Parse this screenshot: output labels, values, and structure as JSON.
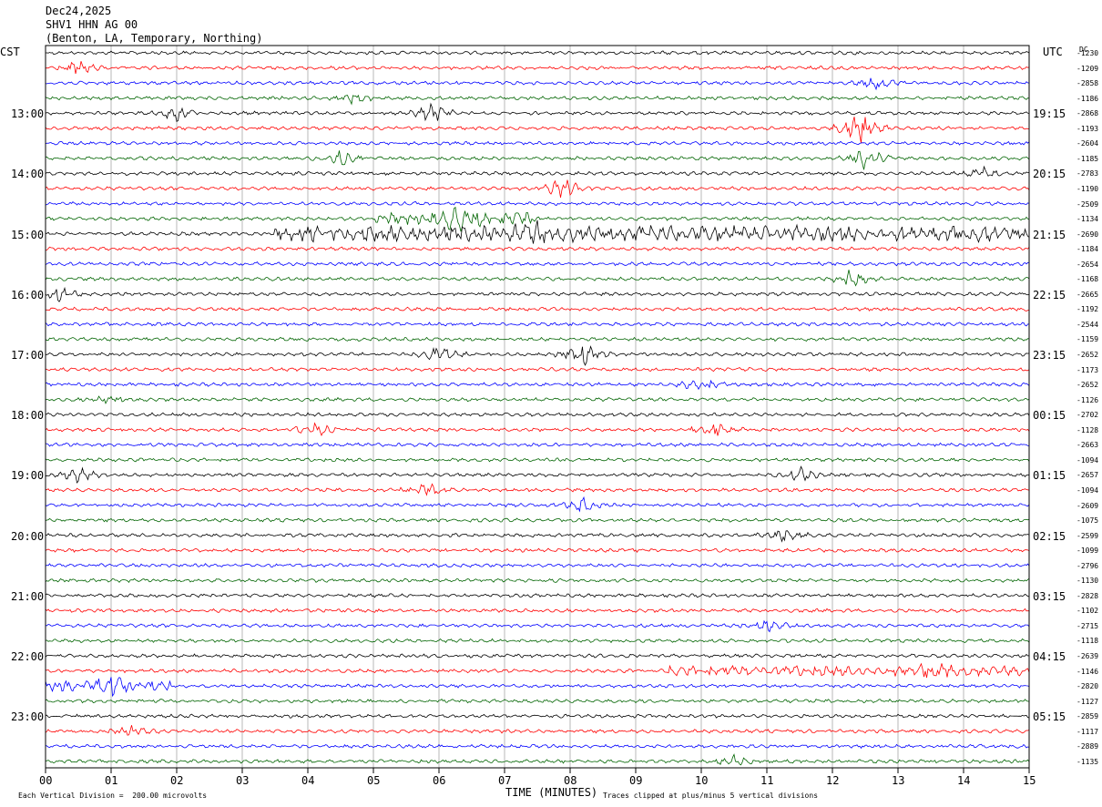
{
  "header": {
    "date": "Dec24,2025",
    "channel": "SHV1 HHN AG 00",
    "location": "(Benton, LA, Temporary, Northing)"
  },
  "left_zone": "CST",
  "right_zone": "UTC",
  "dc_label": "DC",
  "footer": {
    "scale_note": "Each Vertical Division =  200.00 microvolts",
    "clip_note": "Traces clipped at plus/minus 5 vertical divisions"
  },
  "colors": [
    "#000000",
    "#ff0000",
    "#0000ff",
    "#006400"
  ],
  "chart_data": {
    "type": "line",
    "xlabel": "TIME (MINUTES)",
    "x_ticks": [
      "00",
      "01",
      "02",
      "03",
      "04",
      "05",
      "06",
      "07",
      "08",
      "09",
      "10",
      "11",
      "12",
      "13",
      "14",
      "15"
    ],
    "xlim": [
      0,
      15
    ],
    "trace_count": 48,
    "trace_interval_minutes": 15,
    "left_hour_labels": [
      "13:00",
      "14:00",
      "15:00",
      "16:00",
      "17:00",
      "18:00",
      "19:00",
      "20:00",
      "21:00",
      "22:00",
      "23:00"
    ],
    "right_hour_labels": [
      "19:15",
      "20:15",
      "21:15",
      "22:15",
      "23:15",
      "00:15",
      "01:15",
      "02:15",
      "03:15",
      "04:15",
      "05:15"
    ],
    "dc_offsets": [
      "-1230",
      "-1209",
      "-2858",
      "-1186",
      "-2868",
      "-1193",
      "-2604",
      "-1185",
      "-2783",
      "-1190",
      "-2509",
      "-1134",
      "-2690",
      "-1184",
      "-2654",
      "-1168",
      "-2665",
      "-1192",
      "-2544",
      "-1159",
      "-2652",
      "-1173",
      "-2652",
      "-1126",
      "-2702",
      "-1128",
      "-2663",
      "-1094",
      "-2657",
      "-1094",
      "-2609",
      "-1075",
      "-2599",
      "-1099",
      "-2796",
      "-1130",
      "-2828",
      "-1102",
      "-2715",
      "-1118",
      "-2639",
      "-1146",
      "-2820",
      "-1127",
      "-2859",
      "-1117",
      "-2889",
      "-1135"
    ],
    "events": [
      {
        "trace": 1,
        "minute": 0.5,
        "amp": 2.0
      },
      {
        "trace": 2,
        "minute": 12.7,
        "amp": 2.0
      },
      {
        "trace": 3,
        "minute": 4.7,
        "amp": 1.5
      },
      {
        "trace": 4,
        "minute": 2.0,
        "amp": 2.5
      },
      {
        "trace": 4,
        "minute": 5.9,
        "amp": 3.0
      },
      {
        "trace": 5,
        "minute": 12.4,
        "amp": 5.0
      },
      {
        "trace": 7,
        "minute": 4.5,
        "amp": 2.0
      },
      {
        "trace": 7,
        "minute": 12.5,
        "amp": 4.0
      },
      {
        "trace": 8,
        "minute": 14.3,
        "amp": 1.5
      },
      {
        "trace": 9,
        "minute": 7.9,
        "amp": 4.0
      },
      {
        "trace": 11,
        "minute": 6.3,
        "amp": 3.0
      },
      {
        "trace": 12,
        "minute": 7.5,
        "amp": 4.0
      },
      {
        "trace": 15,
        "minute": 12.3,
        "amp": 3.0
      },
      {
        "trace": 16,
        "minute": 0.2,
        "amp": 2.0
      },
      {
        "trace": 20,
        "minute": 6.0,
        "amp": 2.5
      },
      {
        "trace": 20,
        "minute": 8.2,
        "amp": 3.5
      },
      {
        "trace": 22,
        "minute": 10.0,
        "amp": 2.5
      },
      {
        "trace": 23,
        "minute": 1.0,
        "amp": 1.5
      },
      {
        "trace": 25,
        "minute": 10.2,
        "amp": 2.5
      },
      {
        "trace": 25,
        "minute": 4.1,
        "amp": 2.0
      },
      {
        "trace": 28,
        "minute": 0.5,
        "amp": 2.0
      },
      {
        "trace": 28,
        "minute": 11.5,
        "amp": 2.0
      },
      {
        "trace": 29,
        "minute": 5.8,
        "amp": 2.0
      },
      {
        "trace": 30,
        "minute": 8.2,
        "amp": 2.0
      },
      {
        "trace": 32,
        "minute": 11.3,
        "amp": 2.0
      },
      {
        "trace": 38,
        "minute": 11.0,
        "amp": 2.0
      },
      {
        "trace": 41,
        "minute": 13.5,
        "amp": 2.0
      },
      {
        "trace": 42,
        "minute": 1.0,
        "amp": 2.5
      },
      {
        "trace": 45,
        "minute": 1.3,
        "amp": 1.5
      },
      {
        "trace": 47,
        "minute": 10.5,
        "amp": 1.5
      }
    ],
    "noisy_traces": [
      {
        "trace": 12,
        "from_minute": 3.5,
        "to_minute": 15,
        "amp": 2.2
      },
      {
        "trace": 11,
        "from_minute": 5.0,
        "to_minute": 7.5,
        "amp": 1.5
      },
      {
        "trace": 41,
        "from_minute": 9.5,
        "to_minute": 15,
        "amp": 1.2
      },
      {
        "trace": 42,
        "from_minute": 0,
        "to_minute": 2.0,
        "amp": 1.2
      }
    ]
  }
}
